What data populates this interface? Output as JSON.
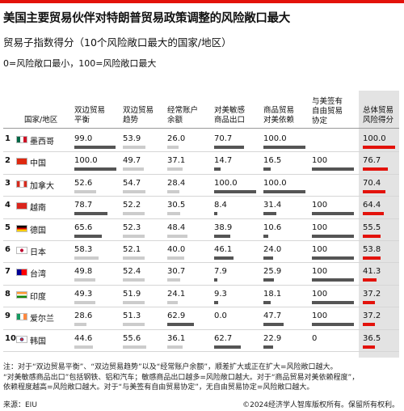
{
  "title": "美国主要贸易伙伴对特朗普贸易政策调整的风险敞口最大",
  "subtitle": "贸易子指数得分（10个风险敞口最大的国家/地区）",
  "scale_note": "0=风险敞口最小，100=风险敞口最大",
  "colors": {
    "accent": "#e3120b",
    "bar_dark": "#555555",
    "bar_light": "#cccccc",
    "total_bg": "#e3e3e3"
  },
  "chart_data": {
    "type": "table",
    "columns": [
      [
        "国家/地区"
      ],
      [
        "双边贸易",
        "平衡"
      ],
      [
        "双边贸易",
        "趋势"
      ],
      [
        "经常账户",
        "余额"
      ],
      [
        "对美敏感",
        "商品出口"
      ],
      [
        "商品贸易",
        "对美依赖"
      ],
      [
        "与美签有",
        "自由贸易",
        "协定"
      ],
      [
        "总体贸易",
        "风险得分"
      ]
    ],
    "rows": [
      {
        "rank": "1",
        "flag": "mx-flag-icon",
        "name": "墨西哥",
        "values": [
          "99.0",
          "53.9",
          "26.0",
          "70.7",
          "100.0",
          "",
          "100.0"
        ]
      },
      {
        "rank": "2",
        "flag": "cn-flag-icon",
        "name": "中国",
        "values": [
          "100.0",
          "49.7",
          "37.1",
          "14.7",
          "16.5",
          "100",
          "76.7"
        ]
      },
      {
        "rank": "3",
        "flag": "ca-flag-icon",
        "name": "加拿大",
        "values": [
          "52.6",
          "54.7",
          "28.4",
          "100.0",
          "100.0",
          "",
          "70.4"
        ]
      },
      {
        "rank": "4",
        "flag": "vn-flag-icon",
        "name": "越南",
        "values": [
          "78.7",
          "52.2",
          "30.5",
          "8.4",
          "31.4",
          "100",
          "64.4"
        ]
      },
      {
        "rank": "5",
        "flag": "de-flag-icon",
        "name": "德国",
        "values": [
          "65.6",
          "52.3",
          "48.4",
          "38.9",
          "10.6",
          "100",
          "55.5"
        ]
      },
      {
        "rank": "6",
        "flag": "jp-flag-icon",
        "name": "日本",
        "values": [
          "58.3",
          "52.1",
          "40.0",
          "46.1",
          "24.0",
          "100",
          "53.8"
        ]
      },
      {
        "rank": "7",
        "flag": "tw-flag-icon",
        "name": "台湾",
        "values": [
          "49.8",
          "52.4",
          "30.7",
          "7.9",
          "25.9",
          "100",
          "41.3"
        ]
      },
      {
        "rank": "8",
        "flag": "in-flag-icon",
        "name": "印度",
        "values": [
          "49.3",
          "51.9",
          "24.1",
          "9.3",
          "18.1",
          "100",
          "37.2"
        ]
      },
      {
        "rank": "9",
        "flag": "ie-flag-icon",
        "name": "爱尔兰",
        "values": [
          "28.6",
          "51.3",
          "62.9",
          "0.0",
          "47.7",
          "100",
          "37.2"
        ]
      },
      {
        "rank": "10",
        "flag": "kr-flag-icon",
        "name": "韩国",
        "values": [
          "44.6",
          "55.6",
          "36.1",
          "62.7",
          "22.9",
          "0",
          "36.5"
        ]
      }
    ],
    "scale_max": 100
  },
  "footnote": [
    "注：对于“双边贸易平衡”、“双边贸易趋势”以及“经常账户余额”，顺差扩大或正在扩大=风险敞口越大。",
    "“对美敏感商品出口”包括钢铁、铝和汽车；敏感商品出口越多=风险敞口越大。对于“商品贸易对美依赖程度”，",
    "依赖程度越高=风险敞口越大。对于“与美签有自由贸易协定”，无自由贸易协定=风险敞口越大。"
  ],
  "source": "来源：EIU",
  "copyright": "©2024经济学人智库版权所有。保留所有权利。"
}
